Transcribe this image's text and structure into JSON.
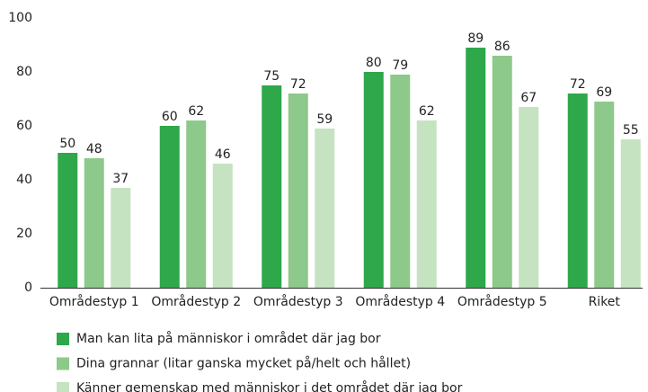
{
  "chart_data": {
    "type": "bar",
    "categories": [
      "Områdestyp 1",
      "Områdestyp 2",
      "Områdestyp 3",
      "Områdestyp 4",
      "Områdestyp 5",
      "Riket"
    ],
    "series": [
      {
        "name": "Man kan lita på människor i området där jag bor",
        "color": "#2ea84a",
        "values": [
          50,
          60,
          75,
          80,
          89,
          72
        ]
      },
      {
        "name": "Dina grannar (litar ganska mycket på/helt och hållet)",
        "color": "#8dc98a",
        "values": [
          48,
          62,
          72,
          79,
          86,
          69
        ]
      },
      {
        "name": "Känner gemenskap med människor i det området där jag bor",
        "color": "#c5e3c0",
        "values": [
          37,
          46,
          59,
          62,
          67,
          55
        ]
      }
    ],
    "ylim": [
      0,
      100
    ],
    "yticks": [
      0,
      20,
      40,
      60,
      80,
      100
    ],
    "grid": false,
    "legend": "bottom"
  }
}
